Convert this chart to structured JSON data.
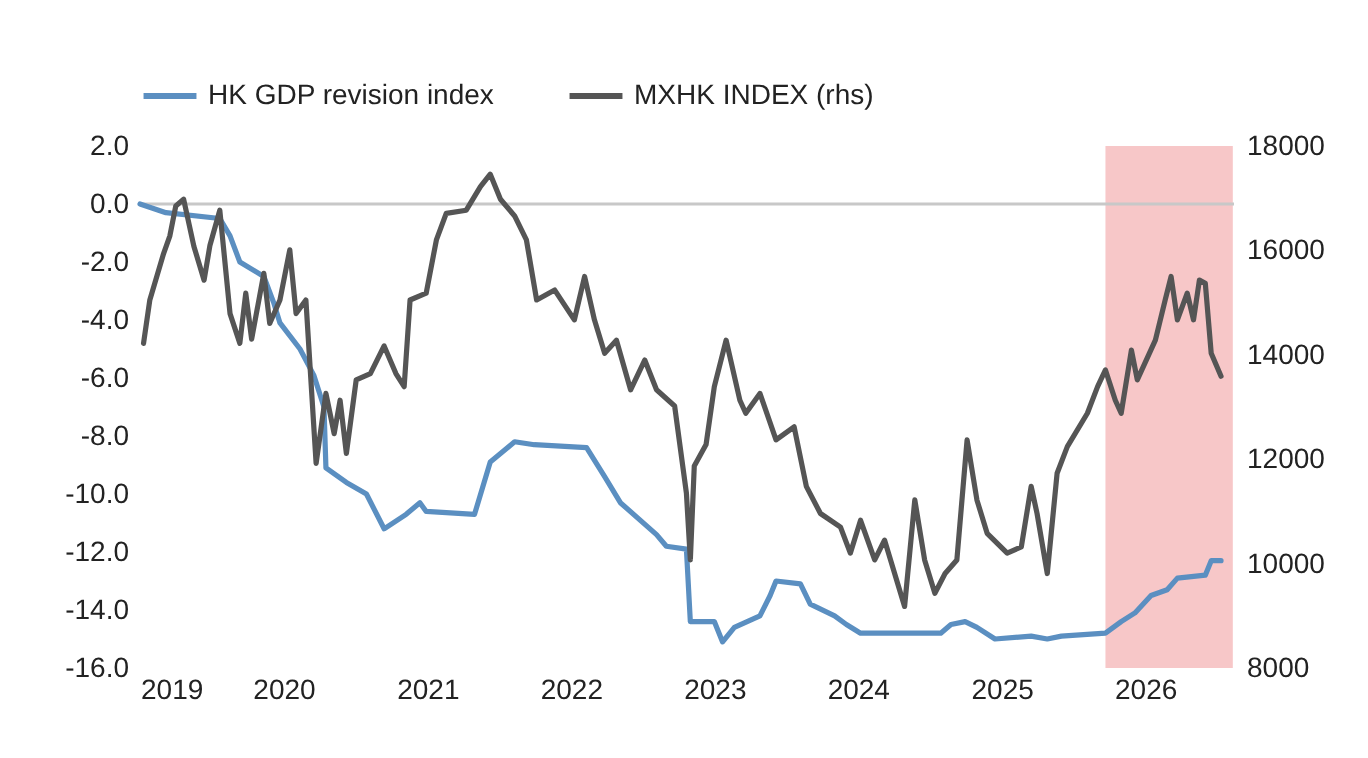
{
  "chart_data": {
    "type": "line",
    "legend": "top",
    "marker": "none",
    "line_style": "solid",
    "grid": false,
    "xlim": [
      "2019-01-01",
      "2026-08-15"
    ],
    "xticks": [
      "2019",
      "2020",
      "2021",
      "2022",
      "2023",
      "2024",
      "2025",
      "2026"
    ],
    "ylim": [
      -16,
      2
    ],
    "yticks": [
      {
        "value": 2,
        "label": "2.0"
      },
      {
        "value": 0,
        "label": "0.0"
      },
      {
        "value": -2,
        "label": "-2.0"
      },
      {
        "value": -4,
        "label": "-4.0"
      },
      {
        "value": -6,
        "label": "-6.0"
      },
      {
        "value": -8,
        "label": "-8.0"
      },
      {
        "value": -10,
        "label": "-10.0"
      },
      {
        "value": -12,
        "label": "-12.0"
      },
      {
        "value": -14,
        "label": "-14.0"
      },
      {
        "value": -16,
        "label": "-16.0"
      }
    ],
    "y2lim": [
      8000,
      18000
    ],
    "y2ticks": [
      8000,
      10000,
      12000,
      14000,
      16000,
      18000
    ],
    "ref_lines": [
      {
        "axis": "y",
        "value": 0,
        "color": "#c8c8c8"
      }
    ],
    "bands": [
      {
        "axis": "x",
        "from": "2025-09-22",
        "to": "2026-08-12",
        "color": "#f4b4b6"
      }
    ],
    "series": [
      {
        "name": "HK GDP revision index",
        "color": "#5b8fc1",
        "type": "line",
        "x": [
          "2019-01-01",
          "2019-03-08",
          "2019-07-23",
          "2019-08-18",
          "2019-09-12",
          "2019-11-12",
          "2019-12-07",
          "2019-12-23",
          "2020-02-12",
          "2020-03-18",
          "2020-04-13",
          "2020-04-18",
          "2020-06-09",
          "2020-07-30",
          "2020-09-13",
          "2020-11-08",
          "2020-12-13",
          "2020-12-29",
          "2021-05-01",
          "2021-06-10",
          "2021-08-11",
          "2021-09-30",
          "2022-02-10",
          "2022-03-28",
          "2022-05-07",
          "2022-08-07",
          "2022-09-01",
          "2022-10-22",
          "2022-11-01",
          "2023-01-01",
          "2023-01-22",
          "2023-02-21",
          "2023-04-27",
          "2023-05-23",
          "2023-06-07",
          "2023-08-08",
          "2023-09-02",
          "2023-11-03",
          "2023-12-03",
          "2024-01-08",
          "2024-07-30",
          "2024-08-25",
          "2024-09-30",
          "2024-10-30",
          "2024-12-15",
          "2025-03-17",
          "2025-04-27",
          "2025-06-02",
          "2025-09-22",
          "2025-11-01",
          "2025-12-06",
          "2026-01-16",
          "2026-02-26",
          "2026-03-24",
          "2026-06-03",
          "2026-06-18",
          "2026-07-13"
        ],
        "values": [
          0.0,
          -0.3,
          -0.5,
          -1.1,
          -2.0,
          -2.5,
          -3.4,
          -4.1,
          -5.0,
          -5.9,
          -7.0,
          -9.1,
          -9.6,
          -10.0,
          -11.2,
          -10.7,
          -10.3,
          -10.6,
          -10.7,
          -8.9,
          -8.2,
          -8.3,
          -8.4,
          -9.4,
          -10.3,
          -11.4,
          -11.8,
          -11.9,
          -14.4,
          -14.4,
          -15.1,
          -14.6,
          -14.2,
          -13.5,
          -13.0,
          -13.1,
          -13.8,
          -14.2,
          -14.5,
          -14.8,
          -14.8,
          -14.5,
          -14.4,
          -14.6,
          -15.0,
          -14.9,
          -15.0,
          -14.9,
          -14.8,
          -14.4,
          -14.1,
          -13.5,
          -13.3,
          -12.9,
          -12.8,
          -12.3,
          -12.3
        ]
      },
      {
        "name": "MXHK INDEX (rhs)",
        "color": "#555555",
        "type": "line",
        "axis": "y2",
        "x": [
          "2019-01-10",
          "2019-01-26",
          "2019-03-02",
          "2019-03-18",
          "2019-04-02",
          "2019-04-22",
          "2019-05-18",
          "2019-06-13",
          "2019-06-28",
          "2019-07-23",
          "2019-08-18",
          "2019-09-12",
          "2019-09-27",
          "2019-10-12",
          "2019-11-12",
          "2019-11-27",
          "2019-12-23",
          "2020-01-17",
          "2020-02-02",
          "2020-02-27",
          "2020-03-24",
          "2020-04-18",
          "2020-05-09",
          "2020-05-24",
          "2020-06-09",
          "2020-07-04",
          "2020-08-09",
          "2020-09-13",
          "2020-10-13",
          "2020-11-03",
          "2020-11-18",
          "2020-12-29",
          "2021-01-24",
          "2021-02-18",
          "2021-04-10",
          "2021-05-16",
          "2021-06-10",
          "2021-07-06",
          "2021-08-11",
          "2021-09-10",
          "2021-10-06",
          "2021-11-21",
          "2022-01-10",
          "2022-02-05",
          "2022-03-02",
          "2022-03-28",
          "2022-04-27",
          "2022-06-02",
          "2022-07-08",
          "2022-08-07",
          "2022-09-22",
          "2022-10-22",
          "2022-11-01",
          "2022-11-11",
          "2022-12-11",
          "2023-01-01",
          "2023-01-31",
          "2023-03-07",
          "2023-03-22",
          "2023-04-27",
          "2023-06-07",
          "2023-07-23",
          "2023-08-23",
          "2023-09-28",
          "2023-11-18",
          "2023-12-13",
          "2024-01-08",
          "2024-02-13",
          "2024-03-09",
          "2024-04-29",
          "2024-05-25",
          "2024-06-19",
          "2024-07-15",
          "2024-08-10",
          "2024-09-09",
          "2024-10-05",
          "2024-10-30",
          "2024-11-25",
          "2025-01-15",
          "2025-02-20",
          "2025-03-17",
          "2025-04-01",
          "2025-04-27",
          "2025-05-22",
          "2025-06-17",
          "2025-08-07",
          "2025-09-02",
          "2025-09-22",
          "2025-10-17",
          "2025-11-01",
          "2025-11-27",
          "2025-12-12",
          "2026-01-27",
          "2026-02-21",
          "2026-03-08",
          "2026-03-24",
          "2026-04-18",
          "2026-05-04",
          "2026-05-19",
          "2026-06-03",
          "2026-06-18",
          "2026-07-13"
        ],
        "values": [
          14220,
          15050,
          15940,
          16280,
          16850,
          16980,
          16080,
          15430,
          16100,
          16770,
          14790,
          14220,
          15180,
          14300,
          15560,
          14600,
          15050,
          16010,
          14790,
          15050,
          11920,
          13260,
          12490,
          13130,
          12110,
          13520,
          13640,
          14170,
          13640,
          13390,
          15050,
          15180,
          16200,
          16710,
          16770,
          17220,
          17460,
          16980,
          16660,
          16200,
          15050,
          15240,
          14670,
          15500,
          14670,
          14030,
          14280,
          13330,
          13900,
          13330,
          13020,
          11350,
          10070,
          11870,
          12280,
          13390,
          14280,
          13130,
          12880,
          13260,
          12370,
          12620,
          11480,
          10960,
          10700,
          10200,
          10830,
          10070,
          10450,
          9180,
          11220,
          10070,
          9430,
          9810,
          10070,
          12370,
          11220,
          10580,
          10200,
          10320,
          11480,
          10960,
          9810,
          11730,
          12240,
          12880,
          13390,
          13710,
          13130,
          12880,
          14090,
          13520,
          14280,
          15050,
          15500,
          14670,
          15180,
          14670,
          15430,
          15370,
          14030,
          13590
        ]
      }
    ]
  }
}
